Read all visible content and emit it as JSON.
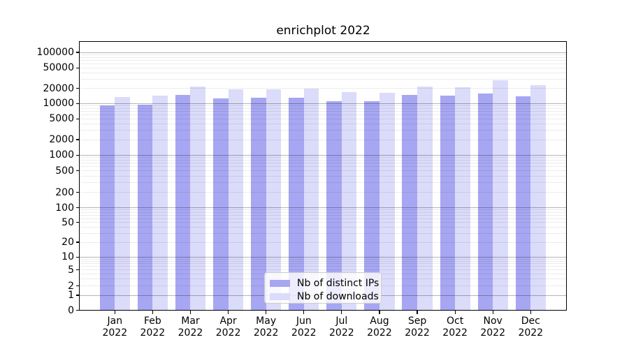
{
  "chart_data": {
    "type": "bar",
    "title": "enrichplot 2022",
    "x_axis": {
      "categories": [
        "Jan",
        "Feb",
        "Mar",
        "Apr",
        "May",
        "Jun",
        "Jul",
        "Aug",
        "Sep",
        "Oct",
        "Nov",
        "Dec"
      ],
      "year_line": "2022"
    },
    "y_axis": {
      "scale": "symlog",
      "ticks": [
        0,
        1,
        2,
        5,
        10,
        20,
        50,
        100,
        200,
        500,
        1000,
        2000,
        5000,
        10000,
        20000,
        50000,
        100000
      ],
      "ylim": [
        0,
        155000
      ],
      "grid": true
    },
    "series": [
      {
        "name": "Nb of distinct IPs",
        "color": "#a6a6f2",
        "values": [
          9300,
          9350,
          15000,
          12500,
          13000,
          13100,
          11100,
          11000,
          14700,
          14200,
          15800,
          13700
        ]
      },
      {
        "name": "Nb of downloads",
        "color": "#dbdbfa",
        "values": [
          13400,
          14200,
          21900,
          18900,
          19200,
          19400,
          16700,
          16100,
          21800,
          21000,
          28500,
          22700
        ]
      }
    ],
    "legend": {
      "position": "bottom-center"
    }
  }
}
